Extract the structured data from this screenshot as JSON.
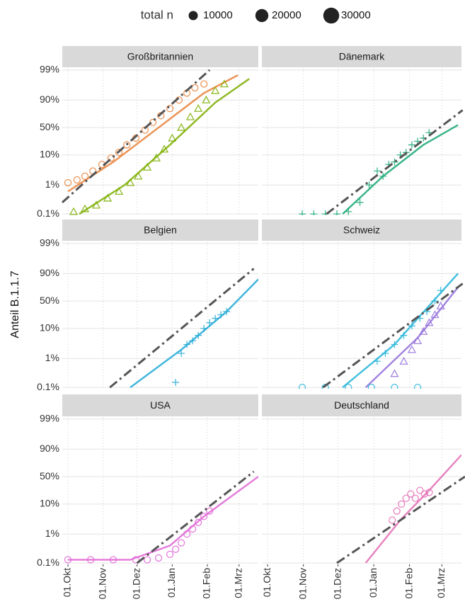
{
  "legend": {
    "title": "total n",
    "sizes": [
      10000,
      20000,
      30000
    ]
  },
  "y_label": "Anteil B.1.1.7",
  "axes": {
    "xlim": [
      -5,
      168
    ],
    "xticks": [
      {
        "value": 0,
        "label": "01.Okt"
      },
      {
        "value": 31,
        "label": "01.Nov"
      },
      {
        "value": 61,
        "label": "01.Dez"
      },
      {
        "value": 92,
        "label": "01.Jan"
      },
      {
        "value": 123,
        "label": "01.Feb"
      },
      {
        "value": 151,
        "label": "01.Mrz"
      }
    ],
    "ylim": [
      0.09,
      99.1
    ],
    "yticks": [
      {
        "value": 0.1,
        "label": "0.1%"
      },
      {
        "value": 1,
        "label": "1%"
      },
      {
        "value": 10,
        "label": "10%"
      },
      {
        "value": 50,
        "label": "50%"
      },
      {
        "value": 90,
        "label": "90%"
      },
      {
        "value": 99,
        "label": "99%"
      }
    ],
    "y_scale": "logit",
    "grid": true
  },
  "chart_data": [
    {
      "type": "scatter",
      "title": "Großbritannien",
      "series": [
        {
          "color": "#e8833a",
          "marker": "circle",
          "x": [
            0,
            8,
            15,
            22,
            30,
            38,
            45,
            52,
            60,
            68,
            75,
            82,
            90,
            98,
            105,
            112,
            120
          ],
          "values": [
            1.2,
            1.5,
            2,
            3,
            5,
            8,
            12,
            20,
            30,
            45,
            60,
            72,
            82,
            90,
            94,
            96,
            97
          ]
        },
        {
          "color": "#7cae00",
          "marker": "triangle",
          "x": [
            5,
            15,
            25,
            35,
            45,
            55,
            62,
            70,
            78,
            85,
            92,
            100,
            108,
            115,
            122,
            130,
            138
          ],
          "values": [
            0.12,
            0.15,
            0.2,
            0.35,
            0.6,
            1.2,
            2,
            4,
            8,
            15,
            30,
            50,
            70,
            82,
            90,
            95,
            97
          ]
        }
      ],
      "fits": [
        {
          "color": "#e8833a",
          "x": [
            0,
            40,
            80,
            120,
            150
          ],
          "values": [
            0.6,
            6,
            50,
            94,
            98.5
          ]
        },
        {
          "color": "#7cae00",
          "x": [
            10,
            50,
            90,
            130,
            160
          ],
          "values": [
            0.1,
            1,
            20,
            88,
            98
          ]
        }
      ],
      "trend": {
        "x": [
          -5,
          125
        ],
        "values": [
          0.25,
          99
        ]
      }
    },
    {
      "type": "scatter",
      "title": "Dänemark",
      "series": [
        {
          "color": "#1aa874",
          "marker": "plus",
          "x": [
            30,
            40,
            50,
            60,
            70,
            80,
            88,
            95,
            100,
            105,
            110,
            115,
            120,
            125,
            130,
            135,
            140
          ],
          "values": [
            0.1,
            0.1,
            0.1,
            0.1,
            0.12,
            0.25,
            1,
            3,
            2,
            5,
            6,
            10,
            12,
            20,
            25,
            30,
            40
          ]
        }
      ],
      "fits": [
        {
          "color": "#1aa874",
          "x": [
            65,
            100,
            135,
            165
          ],
          "values": [
            0.1,
            2,
            20,
            55
          ]
        }
      ],
      "trend": {
        "x": [
          51,
          169
        ],
        "values": [
          0.1,
          80
        ]
      }
    },
    {
      "type": "scatter",
      "title": "Belgien",
      "series": [
        {
          "color": "#22a9d6",
          "marker": "plus",
          "x": [
            95,
            100,
            105,
            110,
            115,
            120,
            125,
            130,
            135,
            140
          ],
          "values": [
            0.15,
            1.5,
            3,
            4,
            6,
            10,
            15,
            20,
            25,
            30
          ]
        }
      ],
      "fits": [
        {
          "color": "#22a9d6",
          "x": [
            55,
            100,
            140,
            168
          ],
          "values": [
            0.1,
            2,
            30,
            85
          ]
        }
      ],
      "trend": {
        "x": [
          37,
          164
        ],
        "values": [
          0.1,
          93
        ]
      }
    },
    {
      "type": "scatter",
      "title": "Schweiz",
      "series": [
        {
          "color": "#26b5d8",
          "marker": "plus",
          "x": [
            95,
            102,
            110,
            118,
            125,
            132,
            138,
            145,
            150
          ],
          "values": [
            0.8,
            1.5,
            3,
            6,
            12,
            20,
            30,
            50,
            70
          ]
        },
        {
          "color": "#9370db",
          "marker": "triangle",
          "x": [
            110,
            118,
            125,
            130,
            135,
            140,
            145,
            150
          ],
          "values": [
            0.3,
            0.8,
            2,
            4,
            8,
            15,
            25,
            40
          ]
        },
        {
          "color": "#26b5d8",
          "marker": "circle",
          "x": [
            30,
            50,
            70,
            90,
            110,
            130
          ],
          "values": [
            0.1,
            0.1,
            0.1,
            0.1,
            0.1,
            0.1
          ]
        }
      ],
      "fits": [
        {
          "color": "#26b5d8",
          "x": [
            65,
            110,
            165
          ],
          "values": [
            0.1,
            3,
            90
          ]
        },
        {
          "color": "#9370db",
          "x": [
            85,
            130,
            165
          ],
          "values": [
            0.1,
            5,
            75
          ]
        }
      ],
      "trend": {
        "x": [
          48,
          169
        ],
        "values": [
          0.1,
          80
        ]
      }
    },
    {
      "type": "scatter",
      "title": "USA",
      "series": [
        {
          "color": "#e066d6",
          "marker": "circle",
          "x": [
            0,
            20,
            40,
            60,
            70,
            80,
            90,
            95,
            100,
            105,
            110,
            115,
            120,
            125
          ],
          "values": [
            0.13,
            0.13,
            0.13,
            0.13,
            0.13,
            0.15,
            0.2,
            0.3,
            0.5,
            1,
            1.5,
            2.5,
            4,
            6
          ]
        }
      ],
      "fits": [
        {
          "color": "#e066d6",
          "x": [
            0,
            55,
            90,
            120,
            168
          ],
          "values": [
            0.13,
            0.13,
            0.4,
            4,
            50
          ]
        }
      ],
      "trend": {
        "x": [
          61,
          164
        ],
        "values": [
          0.1,
          60
        ]
      }
    },
    {
      "type": "scatter",
      "title": "Deutschland",
      "series": [
        {
          "color": "#e36fb5",
          "marker": "circle",
          "x": [
            108,
            112,
            116,
            120,
            124,
            128,
            132,
            136,
            140
          ],
          "values": [
            3,
            6,
            10,
            15,
            20,
            15,
            25,
            20,
            22
          ]
        }
      ],
      "fits": [
        {
          "color": "#e36fb5",
          "x": [
            85,
            115,
            140,
            168
          ],
          "values": [
            0.1,
            3,
            25,
            85
          ]
        }
      ],
      "trend": {
        "x": [
          60,
          171
        ],
        "values": [
          0.1,
          50
        ]
      }
    }
  ]
}
